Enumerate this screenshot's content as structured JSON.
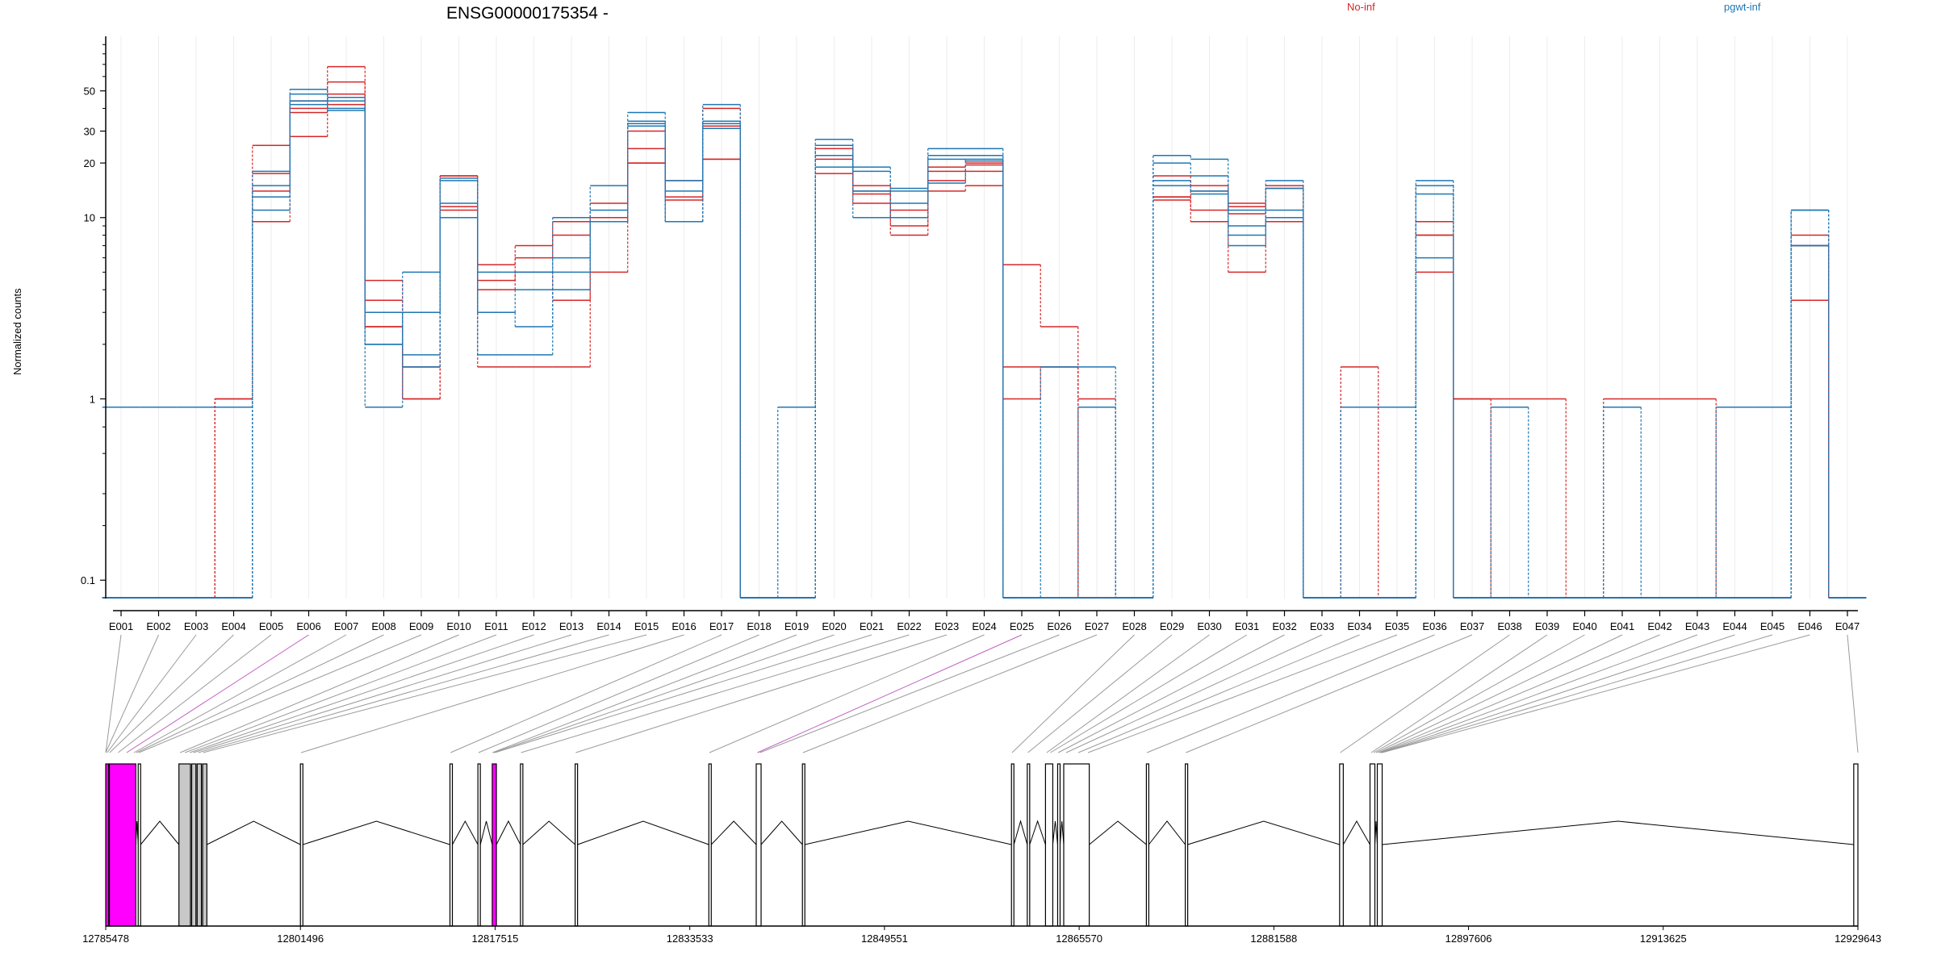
{
  "header": {
    "title": "ENSG00000175354 -",
    "ylabel": "Normalized counts"
  },
  "legend": {
    "position": "top-right",
    "items": [
      {
        "label": "No-inf",
        "color": "#d62728"
      },
      {
        "label": "pgwt-inf",
        "color": "#1f77b4"
      }
    ]
  },
  "chart_data": {
    "type": "line",
    "title": "ENSG00000175354 -",
    "ylabel": "Normalized counts",
    "xlabel": "",
    "yscale": "log",
    "ylim": [
      0.08,
      100
    ],
    "grid": false,
    "legend_position": "top-right",
    "categories": [
      "E001",
      "E002",
      "E003",
      "E004",
      "E005",
      "E006",
      "E007",
      "E008",
      "E009",
      "E010",
      "E011",
      "E012",
      "E013",
      "E014",
      "E015",
      "E016",
      "E017",
      "E018",
      "E019",
      "E020",
      "E021",
      "E022",
      "E023",
      "E024",
      "E025",
      "E026",
      "E027",
      "E028",
      "E029",
      "E030",
      "E031",
      "E032",
      "E033",
      "E034",
      "E035",
      "E036",
      "E037",
      "E038",
      "E039",
      "E040",
      "E041",
      "E042",
      "E043",
      "E044",
      "E045",
      "E046",
      "E047"
    ],
    "yticks": [
      0.1,
      1,
      10,
      20,
      30,
      50
    ],
    "ytick_labels": [
      "0.1",
      "1",
      "10",
      "20",
      "30",
      "50"
    ],
    "series": [
      {
        "group": "No-inf",
        "color": "#d62728",
        "values": [
          0.08,
          0.08,
          0.08,
          1,
          25,
          44,
          68,
          4.5,
          1.5,
          17,
          5.5,
          7,
          9.5,
          12,
          30,
          16,
          40,
          0.08,
          0.08,
          24,
          15,
          9,
          18,
          20,
          5.5,
          2.5,
          1,
          0.08,
          17,
          15,
          11.5,
          15,
          0.08,
          1.5,
          0.08,
          9.5,
          1,
          1,
          1,
          0.08,
          1,
          1,
          1,
          0.08,
          0.08,
          8,
          0.08
        ]
      },
      {
        "group": "No-inf",
        "color": "#d62728",
        "values": [
          0.08,
          0.08,
          0.08,
          1,
          17.5,
          38,
          56,
          3.5,
          1,
          11.5,
          4.5,
          6,
          8,
          10,
          24,
          13,
          32,
          0.08,
          0.08,
          21,
          13.5,
          10,
          16,
          18,
          1,
          1.5,
          0.08,
          0.08,
          13,
          11,
          10.5,
          14.5,
          0.08,
          0.08,
          0.08,
          8,
          1,
          0.08,
          0.08,
          0.08,
          0.08,
          0.08,
          0.08,
          0.08,
          0.08,
          7,
          0.08
        ]
      },
      {
        "group": "No-inf",
        "color": "#d62728",
        "values": [
          0.08,
          0.08,
          0.08,
          0.08,
          9.5,
          28,
          42,
          2.5,
          1,
          11,
          4,
          5,
          3.5,
          5,
          20,
          12.5,
          21,
          0.08,
          0.08,
          17.5,
          12,
          8,
          14,
          15,
          0.08,
          0.08,
          0.08,
          0.08,
          12.5,
          9.5,
          5,
          9.5,
          0.08,
          0.08,
          0.08,
          5,
          0.08,
          0.08,
          0.08,
          0.08,
          0.08,
          0.08,
          0.08,
          0.08,
          0.08,
          3.5,
          0.08
        ]
      },
      {
        "group": "No-inf",
        "color": "#d62728",
        "values": [
          0.08,
          0.08,
          0.08,
          0.08,
          14,
          40,
          48,
          2.5,
          1.5,
          17,
          1.5,
          1.5,
          1.5,
          9.5,
          20,
          9.5,
          21,
          0.08,
          0.08,
          22,
          14,
          11,
          19,
          19.5,
          1.5,
          1.5,
          0.08,
          0.08,
          13,
          14,
          12,
          9.5,
          0.08,
          0.08,
          0.08,
          8,
          0.08,
          0.08,
          0.08,
          0.08,
          0.08,
          0.08,
          0.08,
          0.08,
          0.08,
          7,
          0.08
        ]
      },
      {
        "group": "pgwt-inf",
        "color": "#1f77b4",
        "values": [
          0.9,
          0.9,
          0.9,
          0.9,
          18,
          51,
          44,
          0.9,
          5,
          16.5,
          5,
          5,
          10,
          15,
          38,
          16,
          42,
          0.08,
          0.9,
          27,
          19,
          14,
          24,
          24,
          0.08,
          1.5,
          1.5,
          0.08,
          22,
          21,
          11,
          16,
          0.08,
          0.9,
          0.9,
          16,
          0.08,
          0.9,
          0.08,
          0.08,
          0.9,
          0.08,
          0.08,
          0.9,
          0.9,
          11,
          0.08
        ]
      },
      {
        "group": "pgwt-inf",
        "color": "#1f77b4",
        "values": [
          0.08,
          0.08,
          0.08,
          0.08,
          15,
          48,
          40,
          2,
          3,
          10,
          3,
          4,
          6,
          11,
          34,
          14,
          34,
          0.08,
          0.08,
          25,
          18,
          14.5,
          22,
          22,
          0.08,
          0.08,
          0.9,
          0.08,
          20,
          17,
          9,
          11,
          0.08,
          0.08,
          0.08,
          15,
          0.08,
          0.08,
          0.08,
          0.08,
          0.08,
          0.08,
          0.08,
          0.08,
          0.08,
          11,
          0.08
        ]
      },
      {
        "group": "pgwt-inf",
        "color": "#1f77b4",
        "values": [
          0.08,
          0.08,
          0.08,
          0.08,
          11,
          42,
          46,
          2,
          1.75,
          12,
          1.75,
          1.75,
          5,
          9.5,
          33,
          9.5,
          31,
          0.08,
          0.08,
          19,
          10,
          12,
          15.5,
          21,
          0.08,
          0.08,
          0.08,
          0.08,
          16,
          14,
          7,
          14.5,
          0.08,
          0.08,
          0.08,
          6,
          0.08,
          0.08,
          0.08,
          0.08,
          0.08,
          0.08,
          0.08,
          0.08,
          0.08,
          7,
          0.08
        ]
      },
      {
        "group": "pgwt-inf",
        "color": "#1f77b4",
        "values": [
          0.08,
          0.08,
          0.08,
          0.08,
          13,
          44,
          39,
          3,
          1.5,
          16,
          3,
          2.5,
          4,
          9.5,
          32,
          9.5,
          33,
          0.08,
          0.08,
          22,
          14,
          10,
          21,
          20.5,
          0.08,
          0.08,
          0.08,
          0.08,
          15,
          13.5,
          8,
          10,
          0.08,
          0.08,
          0.08,
          13.5,
          0.08,
          0.08,
          0.08,
          0.08,
          0.08,
          0.08,
          0.08,
          0.08,
          0.08,
          7,
          0.08
        ]
      }
    ]
  },
  "gene_model": {
    "genomic_ticks": [
      "12785478",
      "12801496",
      "12817515",
      "12833533",
      "12849551",
      "12865570",
      "12881588",
      "12897606",
      "12913625",
      "12929643"
    ],
    "genomic_tick_values": [
      12785478,
      12801496,
      12817515,
      12833533,
      12849551,
      12865570,
      12881588,
      12897606,
      12913625,
      12929643
    ],
    "range": [
      12785478,
      12929643
    ],
    "highlight_color": "#ff00ff",
    "exon_fill": "#ffffff",
    "cds_fill": "#c8c8c8",
    "exons": [
      {
        "start": 12785478,
        "end": 12785720,
        "fill": "highlight"
      },
      {
        "start": 12785780,
        "end": 12787950,
        "fill": "highlight"
      },
      {
        "start": 12788150,
        "end": 12788350,
        "fill": "white"
      },
      {
        "start": 12791500,
        "end": 12792450,
        "fill": "cds"
      },
      {
        "start": 12792550,
        "end": 12792900,
        "fill": "cds"
      },
      {
        "start": 12793000,
        "end": 12793350,
        "fill": "cds"
      },
      {
        "start": 12793450,
        "end": 12793800,
        "fill": "cds"
      },
      {
        "start": 12801496,
        "end": 12801700,
        "fill": "white"
      },
      {
        "start": 12813800,
        "end": 12814000,
        "fill": "white"
      },
      {
        "start": 12816100,
        "end": 12816300,
        "fill": "white"
      },
      {
        "start": 12817280,
        "end": 12817620,
        "fill": "highlight"
      },
      {
        "start": 12819600,
        "end": 12819800,
        "fill": "white"
      },
      {
        "start": 12824100,
        "end": 12824300,
        "fill": "white"
      },
      {
        "start": 12835100,
        "end": 12835300,
        "fill": "white"
      },
      {
        "start": 12839000,
        "end": 12839400,
        "fill": "white"
      },
      {
        "start": 12842800,
        "end": 12843000,
        "fill": "white"
      },
      {
        "start": 12860000,
        "end": 12860200,
        "fill": "white"
      },
      {
        "start": 12861300,
        "end": 12861500,
        "fill": "white"
      },
      {
        "start": 12862800,
        "end": 12863400,
        "fill": "white"
      },
      {
        "start": 12863800,
        "end": 12864000,
        "fill": "white"
      },
      {
        "start": 12864300,
        "end": 12866400,
        "fill": "white"
      },
      {
        "start": 12871100,
        "end": 12871300,
        "fill": "white"
      },
      {
        "start": 12874300,
        "end": 12874500,
        "fill": "white"
      },
      {
        "start": 12887000,
        "end": 12887300,
        "fill": "white"
      },
      {
        "start": 12889500,
        "end": 12889900,
        "fill": "white"
      },
      {
        "start": 12890100,
        "end": 12890500,
        "fill": "white"
      },
      {
        "start": 12929300,
        "end": 12929643,
        "fill": "white"
      }
    ],
    "exon_bin_positions": [
      12785478,
      12785478,
      12785600,
      12785800,
      12786500,
      12787200,
      12787800,
      12788000,
      12788200,
      12791600,
      12792000,
      12792400,
      12792700,
      12793100,
      12793500,
      12801550,
      12813850,
      12816150,
      12817300,
      12817400,
      12817500,
      12819650,
      12824150,
      12835150,
      12839100,
      12839300,
      12842850,
      12860050,
      12861350,
      12862900,
      12863200,
      12863850,
      12864500,
      12865500,
      12866300,
      12871150,
      12874350,
      12887050,
      12889600,
      12889800,
      12890000,
      12890200,
      12890300,
      12890400,
      12890450,
      12890500,
      12929643
    ],
    "highlighted_bins": [
      "E006",
      "E025"
    ]
  }
}
